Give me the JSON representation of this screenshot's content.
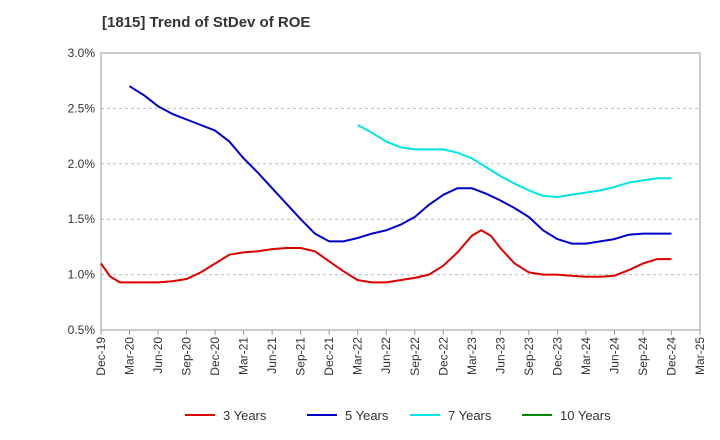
{
  "chart_data": {
    "type": "line",
    "title": "[1815]  Trend of StDev of ROE",
    "xlabel": "",
    "ylabel": "",
    "ylim": [
      0.5,
      3.0
    ],
    "y_ticks": [
      0.5,
      1.0,
      1.5,
      2.0,
      2.5,
      3.0
    ],
    "y_tick_labels": [
      "0.5%",
      "1.0%",
      "1.5%",
      "2.0%",
      "2.5%",
      "3.0%"
    ],
    "x_tick_labels": [
      "Dec-19",
      "Mar-20",
      "Jun-20",
      "Sep-20",
      "Dec-20",
      "Mar-21",
      "Jun-21",
      "Sep-21",
      "Dec-21",
      "Mar-22",
      "Jun-22",
      "Sep-22",
      "Dec-22",
      "Mar-23",
      "Jun-23",
      "Sep-23",
      "Dec-23",
      "Mar-24",
      "Jun-24",
      "Sep-24",
      "Dec-24",
      "Mar-25"
    ],
    "grid": "horizontal dashed",
    "legend_position": "bottom",
    "series": [
      {
        "name": "3 Years",
        "color": "#dd0000",
        "points": [
          [
            0,
            1.1
          ],
          [
            0.33,
            0.98
          ],
          [
            0.67,
            0.93
          ],
          [
            1,
            0.93
          ],
          [
            1.5,
            0.93
          ],
          [
            2,
            0.93
          ],
          [
            2.5,
            0.94
          ],
          [
            3,
            0.96
          ],
          [
            3.5,
            1.02
          ],
          [
            4,
            1.1
          ],
          [
            4.5,
            1.18
          ],
          [
            5,
            1.2
          ],
          [
            5.5,
            1.21
          ],
          [
            6,
            1.23
          ],
          [
            6.5,
            1.24
          ],
          [
            7,
            1.24
          ],
          [
            7.5,
            1.21
          ],
          [
            8,
            1.12
          ],
          [
            8.5,
            1.03
          ],
          [
            9,
            0.95
          ],
          [
            9.5,
            0.93
          ],
          [
            10,
            0.93
          ],
          [
            10.5,
            0.95
          ],
          [
            11,
            0.97
          ],
          [
            11.5,
            1.0
          ],
          [
            12,
            1.08
          ],
          [
            12.5,
            1.2
          ],
          [
            13,
            1.35
          ],
          [
            13.33,
            1.4
          ],
          [
            13.67,
            1.35
          ],
          [
            14,
            1.24
          ],
          [
            14.5,
            1.1
          ],
          [
            15,
            1.02
          ],
          [
            15.5,
            1.0
          ],
          [
            16,
            1.0
          ],
          [
            16.5,
            0.99
          ],
          [
            17,
            0.98
          ],
          [
            17.5,
            0.98
          ],
          [
            18,
            0.99
          ],
          [
            18.5,
            1.04
          ],
          [
            19,
            1.1
          ],
          [
            19.5,
            1.14
          ],
          [
            20,
            1.14
          ]
        ]
      },
      {
        "name": "5 Years",
        "color": "#0000cc",
        "points": [
          [
            1,
            2.7
          ],
          [
            1.5,
            2.62
          ],
          [
            2,
            2.52
          ],
          [
            2.5,
            2.45
          ],
          [
            3,
            2.4
          ],
          [
            3.5,
            2.35
          ],
          [
            4,
            2.3
          ],
          [
            4.5,
            2.2
          ],
          [
            5,
            2.05
          ],
          [
            5.5,
            1.92
          ],
          [
            6,
            1.78
          ],
          [
            6.5,
            1.64
          ],
          [
            7,
            1.5
          ],
          [
            7.5,
            1.37
          ],
          [
            8,
            1.3
          ],
          [
            8.5,
            1.3
          ],
          [
            9,
            1.33
          ],
          [
            9.5,
            1.37
          ],
          [
            10,
            1.4
          ],
          [
            10.5,
            1.45
          ],
          [
            11,
            1.52
          ],
          [
            11.5,
            1.63
          ],
          [
            12,
            1.72
          ],
          [
            12.5,
            1.78
          ],
          [
            13,
            1.78
          ],
          [
            13.5,
            1.73
          ],
          [
            14,
            1.67
          ],
          [
            14.5,
            1.6
          ],
          [
            15,
            1.52
          ],
          [
            15.5,
            1.4
          ],
          [
            16,
            1.32
          ],
          [
            16.5,
            1.28
          ],
          [
            17,
            1.28
          ],
          [
            17.5,
            1.3
          ],
          [
            18,
            1.32
          ],
          [
            18.5,
            1.36
          ],
          [
            19,
            1.37
          ],
          [
            19.5,
            1.37
          ],
          [
            20,
            1.37
          ]
        ]
      },
      {
        "name": "7 Years",
        "color": "#00e5e5",
        "points": [
          [
            9,
            2.35
          ],
          [
            9.5,
            2.28
          ],
          [
            10,
            2.2
          ],
          [
            10.5,
            2.15
          ],
          [
            11,
            2.13
          ],
          [
            11.5,
            2.13
          ],
          [
            12,
            2.13
          ],
          [
            12.5,
            2.1
          ],
          [
            13,
            2.05
          ],
          [
            13.5,
            1.97
          ],
          [
            14,
            1.89
          ],
          [
            14.5,
            1.82
          ],
          [
            15,
            1.76
          ],
          [
            15.5,
            1.71
          ],
          [
            16,
            1.7
          ],
          [
            16.5,
            1.72
          ],
          [
            17,
            1.74
          ],
          [
            17.5,
            1.76
          ],
          [
            18,
            1.79
          ],
          [
            18.5,
            1.83
          ],
          [
            19,
            1.85
          ],
          [
            19.5,
            1.87
          ],
          [
            20,
            1.87
          ]
        ]
      },
      {
        "name": "10 Years",
        "color": "#008800",
        "points": []
      }
    ]
  }
}
